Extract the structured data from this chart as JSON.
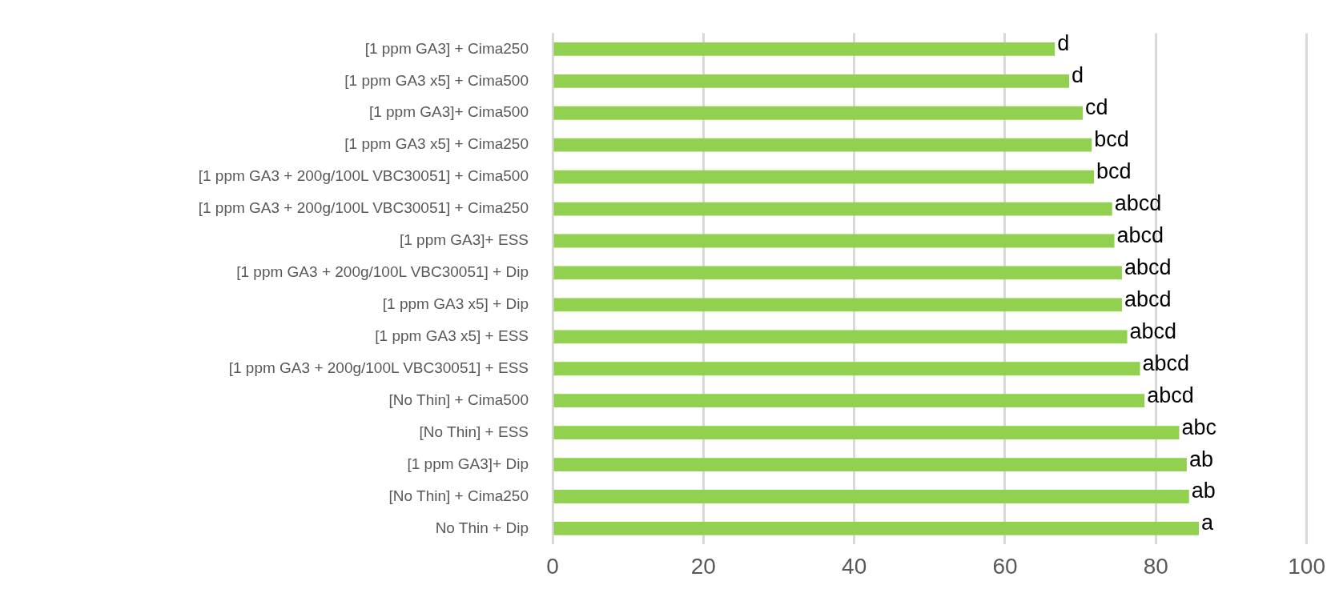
{
  "chart_data": {
    "type": "bar",
    "orientation": "horizontal",
    "categories": [
      "[1 ppm GA3] + Cima250",
      "[1 ppm GA3 x5] + Cima500",
      "[1 ppm GA3]+ Cima500",
      "[1 ppm GA3 x5] + Cima250",
      "[1 ppm GA3 + 200g/100L VBC30051] + Cima500",
      "[1 ppm GA3 + 200g/100L VBC30051] + Cima250",
      "[1 ppm GA3]+ ESS",
      "[1 ppm GA3 + 200g/100L VBC30051] + Dip",
      "[1 ppm GA3 x5] + Dip",
      "[1 ppm GA3 x5] + ESS",
      "[1 ppm GA3 + 200g/100L VBC30051] + ESS",
      "[No Thin] + Cima500",
      "[No Thin] + ESS",
      "[1 ppm GA3]+ Dip",
      "[No Thin] + Cima250",
      "No Thin + Dip"
    ],
    "values": [
      66.6,
      68.5,
      70.3,
      71.5,
      71.8,
      74.2,
      74.5,
      75.5,
      75.5,
      76.2,
      77.9,
      78.5,
      83.1,
      84.1,
      84.4,
      85.7
    ],
    "color": "#92d050",
    "xlim": [
      0,
      100
    ],
    "xticks": [
      0,
      20,
      40,
      60,
      80,
      100
    ],
    "grid": "x",
    "legend": false,
    "annotations": [
      {
        "text": "d",
        "x": 66.6,
        "y": "[1 ppm GA3] + Cima250"
      },
      {
        "text": "d",
        "x": 68.5,
        "y": "[1 ppm GA3 x5] + Cima500"
      },
      {
        "text": "cd",
        "x": 70.3,
        "y": "[1 ppm GA3]+ Cima500"
      },
      {
        "text": "bcd",
        "x": 71.5,
        "y": "[1 ppm GA3 x5] + Cima250"
      },
      {
        "text": "bcd",
        "x": 71.8,
        "y": "[1 ppm GA3 + 200g/100L VBC30051] + Cima500"
      },
      {
        "text": "abcd",
        "x": 74.2,
        "y": "[1 ppm GA3 + 200g/100L VBC30051] + Cima250"
      },
      {
        "text": "abcd",
        "x": 74.5,
        "y": "[1 ppm GA3]+ ESS"
      },
      {
        "text": "abcd",
        "x": 75.5,
        "y": "[1 ppm GA3 + 200g/100L VBC30051] + Dip"
      },
      {
        "text": "abcd",
        "x": 75.5,
        "y": "[1 ppm GA3 x5] + Dip"
      },
      {
        "text": "abcd",
        "x": 76.2,
        "y": "[1 ppm GA3 x5] + ESS"
      },
      {
        "text": "abcd",
        "x": 77.9,
        "y": "[1 ppm GA3 + 200g/100L VBC30051] + ESS"
      },
      {
        "text": "abcd",
        "x": 78.5,
        "y": "[No Thin] + Cima500"
      },
      {
        "text": "abc",
        "x": 83.1,
        "y": "[No Thin] + ESS"
      },
      {
        "text": "ab",
        "x": 84.1,
        "y": "[1 ppm GA3]+ Dip"
      },
      {
        "text": "ab",
        "x": 84.4,
        "y": "[No Thin] + Cima250"
      },
      {
        "text": "a",
        "x": 85.7,
        "y": "No Thin + Dip"
      }
    ]
  }
}
